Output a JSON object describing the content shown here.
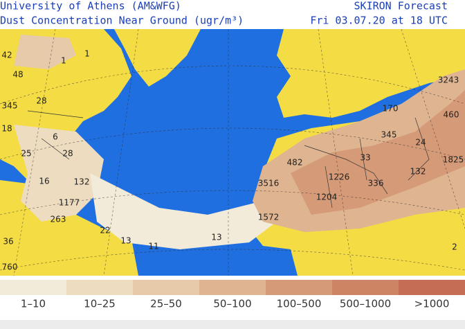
{
  "header": {
    "institution": "University of Athens (AM&WFG)",
    "product": "Dust Concentration Near Ground (ugr/m³)",
    "forecast": "SKIRON Forecast",
    "date": "Fri 03.07.20 at 18 UTC"
  },
  "map_labels": [
    "42",
    "48",
    "1",
    "1",
    "345",
    "28",
    "18",
    "6",
    "25",
    "28",
    "16",
    "132",
    "1177",
    "263",
    "22",
    "13",
    "11",
    "13",
    "36",
    "760",
    "3243",
    "460",
    "170",
    "345",
    "24",
    "1825",
    "482",
    "33",
    "132",
    "3516",
    "1226",
    "336",
    "1204",
    "1572",
    "2"
  ],
  "legend": [
    {
      "label": "1–10",
      "color": "#f3ebd9"
    },
    {
      "label": "10–25",
      "color": "#eddcbf"
    },
    {
      "label": "25–50",
      "color": "#e6caa9"
    },
    {
      "label": "50–100",
      "color": "#dfb591"
    },
    {
      "label": "100–500",
      "color": "#d59b78"
    },
    {
      "label": "500–1000",
      "color": "#cd8465"
    },
    {
      "label": ">1000",
      "color": "#c66d56"
    }
  ]
}
